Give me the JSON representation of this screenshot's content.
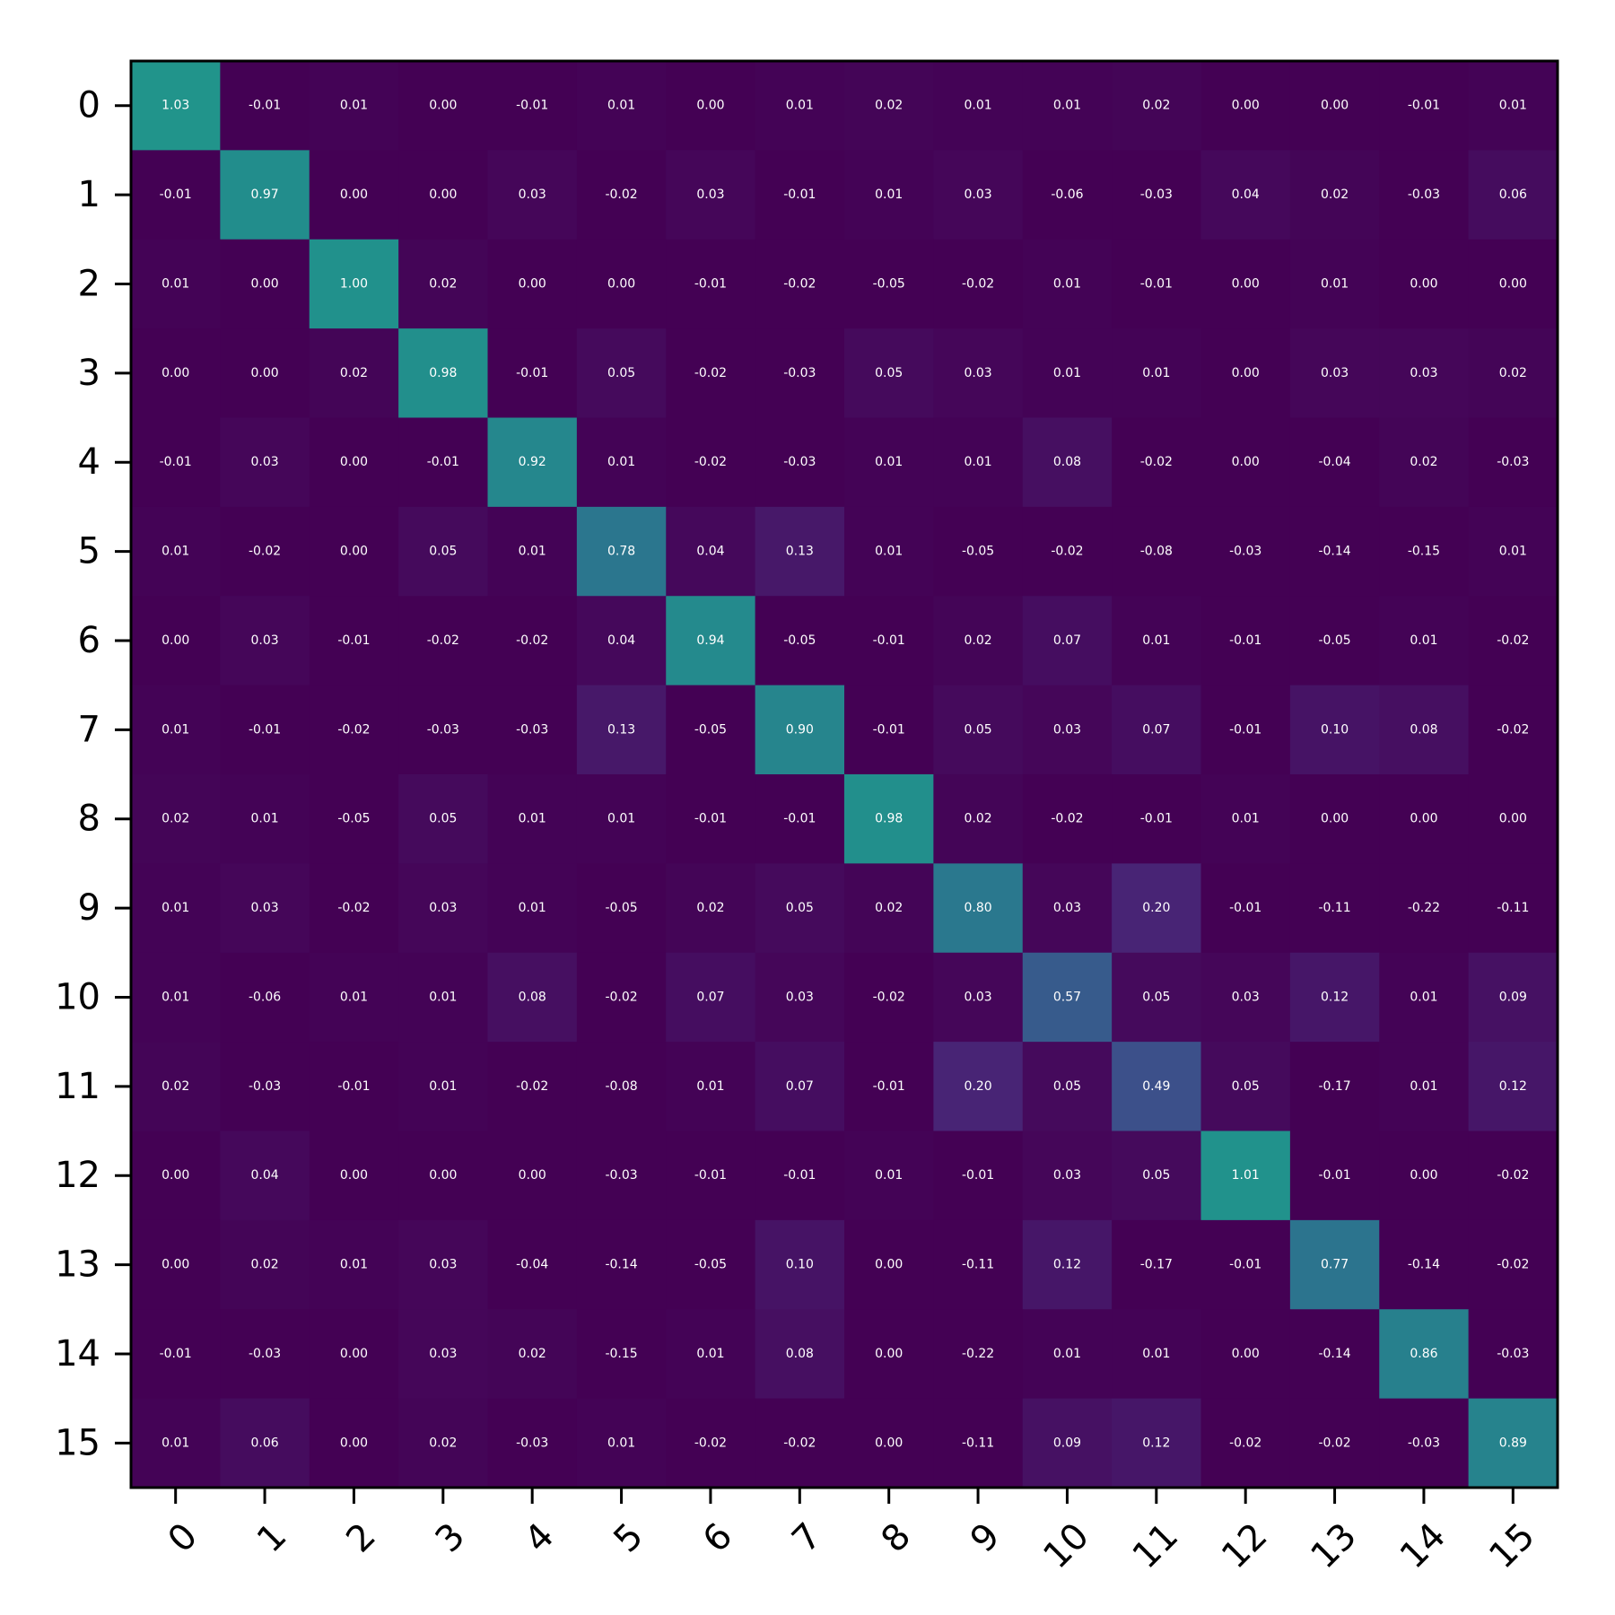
{
  "chart_data": {
    "type": "heatmap",
    "title": "",
    "xlabel": "",
    "ylabel": "",
    "x_tick_labels": [
      "0",
      "1",
      "2",
      "3",
      "4",
      "5",
      "6",
      "7",
      "8",
      "9",
      "10",
      "11",
      "12",
      "13",
      "14",
      "15"
    ],
    "y_tick_labels": [
      "0",
      "1",
      "2",
      "3",
      "4",
      "5",
      "6",
      "7",
      "8",
      "9",
      "10",
      "11",
      "12",
      "13",
      "14",
      "15"
    ],
    "colormap": "viridis",
    "color_range": [
      0,
      2
    ],
    "grid": false,
    "value_format": "2 decimals",
    "values": [
      [
        1.03,
        -0.01,
        0.01,
        0.0,
        -0.01,
        0.01,
        0.0,
        0.01,
        0.02,
        0.01,
        0.01,
        0.02,
        -0.0,
        -0.0,
        -0.01,
        0.01
      ],
      [
        -0.01,
        0.97,
        0.0,
        0.0,
        0.03,
        -0.02,
        0.03,
        -0.01,
        0.01,
        0.03,
        -0.06,
        -0.03,
        0.04,
        0.02,
        -0.03,
        0.06
      ],
      [
        0.01,
        0.0,
        1.0,
        0.02,
        0.0,
        0.0,
        -0.01,
        -0.02,
        -0.05,
        -0.02,
        0.01,
        -0.01,
        -0.0,
        0.01,
        0.0,
        -0.0
      ],
      [
        0.0,
        0.0,
        0.02,
        0.98,
        -0.01,
        0.05,
        -0.02,
        -0.03,
        0.05,
        0.03,
        0.01,
        0.01,
        -0.0,
        0.03,
        0.03,
        0.02
      ],
      [
        -0.01,
        0.03,
        0.0,
        -0.01,
        0.92,
        0.01,
        -0.02,
        -0.03,
        0.01,
        0.01,
        0.08,
        -0.02,
        0.0,
        -0.04,
        0.02,
        -0.03
      ],
      [
        0.01,
        -0.02,
        0.0,
        0.05,
        0.01,
        0.78,
        0.04,
        0.13,
        0.01,
        -0.05,
        -0.02,
        -0.08,
        -0.03,
        -0.14,
        -0.15,
        0.01
      ],
      [
        0.0,
        0.03,
        -0.01,
        -0.02,
        -0.02,
        0.04,
        0.94,
        -0.05,
        -0.01,
        0.02,
        0.07,
        0.01,
        -0.01,
        -0.05,
        0.01,
        -0.02
      ],
      [
        0.01,
        -0.01,
        -0.02,
        -0.03,
        -0.03,
        0.13,
        -0.05,
        0.9,
        -0.01,
        0.05,
        0.03,
        0.07,
        -0.01,
        0.1,
        0.08,
        -0.02
      ],
      [
        0.02,
        0.01,
        -0.05,
        0.05,
        0.01,
        0.01,
        -0.01,
        -0.01,
        0.98,
        0.02,
        -0.02,
        -0.01,
        0.01,
        -0.0,
        -0.0,
        -0.0
      ],
      [
        0.01,
        0.03,
        -0.02,
        0.03,
        0.01,
        -0.05,
        0.02,
        0.05,
        0.02,
        0.8,
        0.03,
        0.2,
        -0.01,
        -0.11,
        -0.22,
        -0.11
      ],
      [
        0.01,
        -0.06,
        0.01,
        0.01,
        0.08,
        -0.02,
        0.07,
        0.03,
        -0.02,
        0.03,
        0.57,
        0.05,
        0.03,
        0.12,
        0.01,
        0.09
      ],
      [
        0.02,
        -0.03,
        -0.01,
        0.01,
        -0.02,
        -0.08,
        0.01,
        0.07,
        -0.01,
        0.2,
        0.05,
        0.49,
        0.05,
        -0.17,
        0.01,
        0.12
      ],
      [
        -0.0,
        0.04,
        -0.0,
        -0.0,
        0.0,
        -0.03,
        -0.01,
        -0.01,
        0.01,
        -0.01,
        0.03,
        0.05,
        1.01,
        -0.01,
        -0.0,
        -0.02
      ],
      [
        -0.0,
        0.02,
        0.01,
        0.03,
        -0.04,
        -0.14,
        -0.05,
        0.1,
        -0.0,
        -0.11,
        0.12,
        -0.17,
        -0.01,
        0.77,
        -0.14,
        -0.02
      ],
      [
        -0.01,
        -0.03,
        0.0,
        0.03,
        0.02,
        -0.15,
        0.01,
        0.08,
        -0.0,
        -0.22,
        0.01,
        0.01,
        -0.0,
        -0.14,
        0.86,
        -0.03
      ],
      [
        0.01,
        0.06,
        -0.0,
        0.02,
        -0.03,
        0.01,
        -0.02,
        -0.02,
        -0.0,
        -0.11,
        0.09,
        0.12,
        -0.02,
        -0.02,
        -0.03,
        0.89
      ]
    ]
  }
}
